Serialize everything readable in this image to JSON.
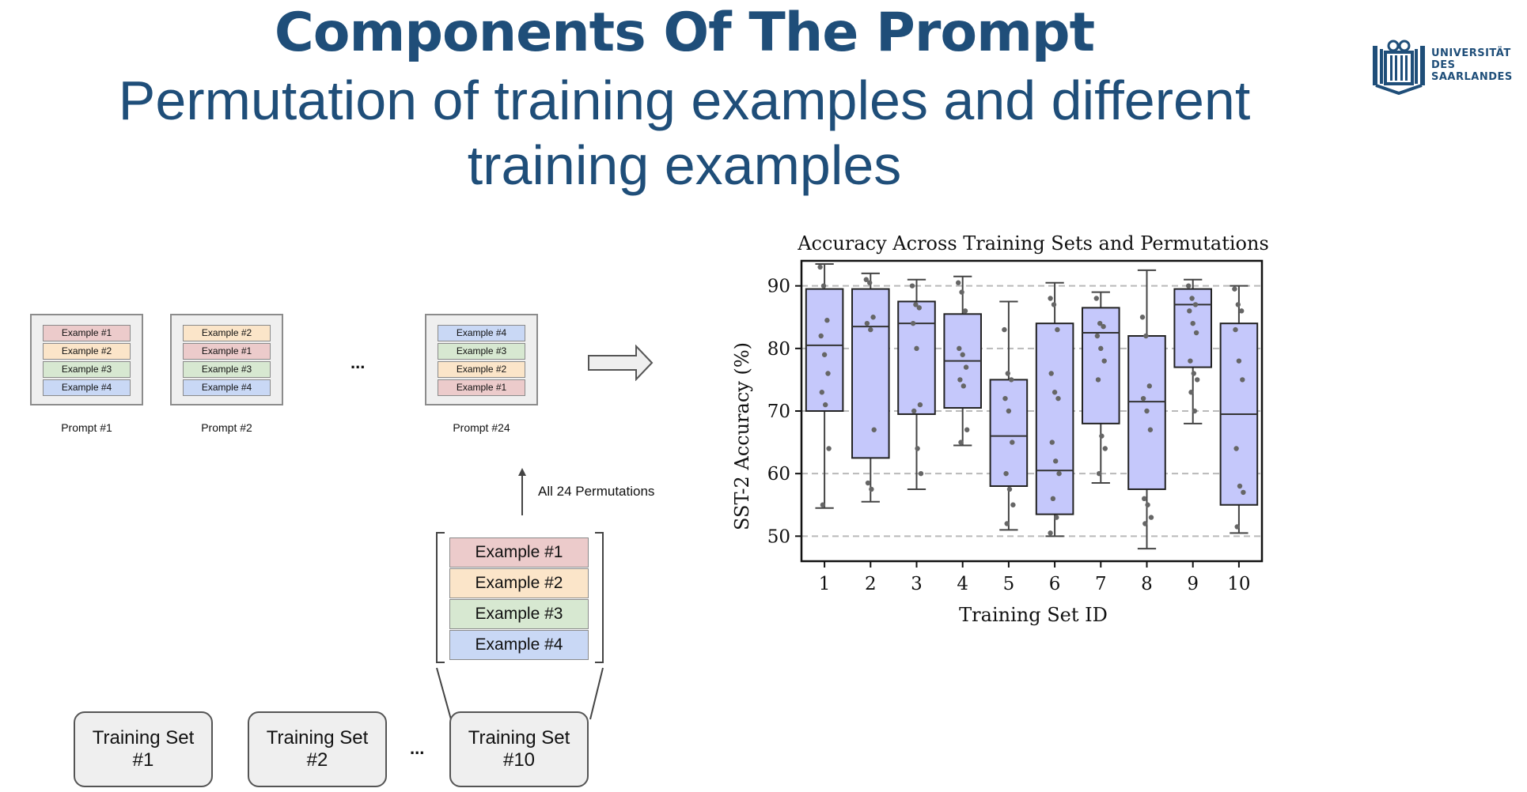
{
  "slide": {
    "title": "Components Of The Prompt",
    "subtitle_line1": "Permutation of training examples and different",
    "subtitle_line2": "training examples"
  },
  "logo": {
    "line1": "UNIVERSITÄT",
    "line2": "DES",
    "line3": "SAARLANDES"
  },
  "diagram": {
    "prompts": [
      {
        "label": "Prompt #1",
        "examples": [
          "Example #1",
          "Example #2",
          "Example #3",
          "Example #4"
        ],
        "colors": [
          "c1",
          "c2",
          "c3",
          "c4"
        ]
      },
      {
        "label": "Prompt #2",
        "examples": [
          "Example #2",
          "Example #1",
          "Example #3",
          "Example #4"
        ],
        "colors": [
          "c2",
          "c1",
          "c3",
          "c4"
        ]
      },
      {
        "label": "Prompt #24",
        "examples": [
          "Example #4",
          "Example #3",
          "Example #2",
          "Example #1"
        ],
        "colors": [
          "c4",
          "c3",
          "c2",
          "c1"
        ]
      }
    ],
    "ellipsis": "...",
    "permutations_label": "All 24 Permutations",
    "expanded_examples": [
      "Example #1",
      "Example #2",
      "Example #3",
      "Example #4"
    ],
    "training_sets": [
      {
        "line1": "Training Set",
        "line2": "#1"
      },
      {
        "line1": "Training Set",
        "line2": "#2"
      },
      {
        "line1": "Training Set",
        "line2": "#10"
      }
    ],
    "colors": {
      "ex1": "#eccbcb",
      "ex2": "#fbe5c9",
      "ex3": "#d7e8d1",
      "ex4": "#c9d8f5"
    }
  },
  "chart_data": {
    "type": "box",
    "title": "Accuracy Across Training Sets and Permutations",
    "xlabel": "Training Set ID",
    "ylabel": "SST-2 Accuracy (%)",
    "ylim": [
      46,
      94
    ],
    "yticks": [
      50,
      60,
      70,
      80,
      90
    ],
    "grid": "horizontal dashed",
    "box_color": "#c5c8fb",
    "categories": [
      "1",
      "2",
      "3",
      "4",
      "5",
      "6",
      "7",
      "8",
      "9",
      "10"
    ],
    "boxes": [
      {
        "whislo": 54.5,
        "q1": 70,
        "med": 80.5,
        "q3": 89.5,
        "whishi": 93.5
      },
      {
        "whislo": 55.5,
        "q1": 62.5,
        "med": 83.5,
        "q3": 89.5,
        "whishi": 92
      },
      {
        "whislo": 57.5,
        "q1": 69.5,
        "med": 84,
        "q3": 87.5,
        "whishi": 91
      },
      {
        "whislo": 64.5,
        "q1": 70.5,
        "med": 78,
        "q3": 85.5,
        "whishi": 91.5
      },
      {
        "whislo": 51,
        "q1": 58,
        "med": 66,
        "q3": 75,
        "whishi": 87.5
      },
      {
        "whislo": 50,
        "q1": 53.5,
        "med": 60.5,
        "q3": 84,
        "whishi": 90.5
      },
      {
        "whislo": 58.5,
        "q1": 68,
        "med": 82.5,
        "q3": 86.5,
        "whishi": 89
      },
      {
        "whislo": 48,
        "q1": 57.5,
        "med": 71.5,
        "q3": 82,
        "whishi": 92.5
      },
      {
        "whislo": 68,
        "q1": 77,
        "med": 87,
        "q3": 89.5,
        "whishi": 91
      },
      {
        "whislo": 50.5,
        "q1": 55,
        "med": 69.5,
        "q3": 84,
        "whishi": 90
      }
    ],
    "points": [
      [
        93,
        90,
        84.5,
        82,
        79,
        76,
        73,
        71,
        64,
        55
      ],
      [
        91,
        90.5,
        85,
        84,
        83,
        67,
        58.5,
        57.5
      ],
      [
        90,
        87,
        86.5,
        84,
        80,
        71,
        70,
        64,
        60
      ],
      [
        90.5,
        89,
        86,
        80,
        79,
        77,
        75,
        74,
        67,
        65
      ],
      [
        83,
        76,
        75,
        72,
        70,
        65,
        60,
        57.5,
        55,
        52
      ],
      [
        88,
        87,
        83,
        76,
        73,
        72,
        65,
        62,
        60,
        56,
        53,
        50.5
      ],
      [
        88,
        84,
        83.5,
        82,
        80,
        78,
        75,
        66,
        64,
        60
      ],
      [
        85,
        82,
        74,
        72,
        70,
        67,
        56,
        55,
        53,
        52
      ],
      [
        90,
        88,
        87,
        86,
        84,
        82.5,
        78,
        76,
        75,
        73,
        70
      ],
      [
        89.5,
        87,
        86,
        83,
        78,
        75,
        64,
        58,
        57,
        51.5
      ]
    ]
  }
}
